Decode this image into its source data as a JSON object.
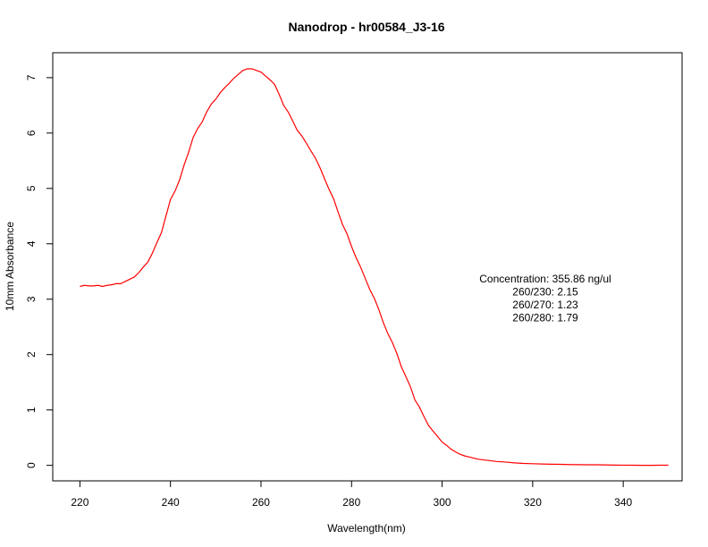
{
  "chart_data": {
    "type": "line",
    "title": "Nanodrop - hr00584_J3-16",
    "xlabel": "Wavelength(nm)",
    "ylabel": "10mm Absorbance",
    "xlim": [
      214,
      353
    ],
    "ylim": [
      -0.28,
      7.45
    ],
    "xticks": [
      220,
      240,
      260,
      280,
      300,
      320,
      340
    ],
    "yticks": [
      0,
      1,
      2,
      3,
      4,
      5,
      6,
      7
    ],
    "grid": false,
    "line_color": "#ff0000",
    "annotations": [
      "Concentration: 355.86 ng/ul",
      "260/230: 2.15",
      "260/270: 1.23",
      "260/280: 1.79"
    ],
    "series": [
      {
        "x": [
          220,
          221,
          222,
          223,
          224,
          225,
          226,
          227,
          228,
          229,
          230,
          231,
          232,
          233,
          234,
          235,
          236,
          237,
          238,
          239,
          240,
          241,
          242,
          243,
          244,
          245,
          246,
          247,
          248,
          249,
          250,
          251,
          252,
          253,
          254,
          255,
          256,
          257,
          258,
          259,
          260,
          261,
          262,
          263,
          264,
          265,
          266,
          267,
          268,
          269,
          270,
          271,
          272,
          273,
          274,
          275,
          276,
          277,
          278,
          279,
          280,
          281,
          282,
          283,
          284,
          285,
          286,
          287,
          288,
          289,
          290,
          291,
          292,
          293,
          294,
          295,
          296,
          297,
          298,
          299,
          300,
          301,
          302,
          303,
          304,
          305,
          306,
          307,
          308,
          309,
          310,
          312,
          314,
          316,
          318,
          320,
          322,
          324,
          326,
          328,
          330,
          332,
          334,
          336,
          338,
          340,
          342,
          344,
          346,
          348,
          350
        ],
        "y": [
          3.23,
          3.25,
          3.24,
          3.24,
          3.25,
          3.23,
          3.25,
          3.26,
          3.28,
          3.28,
          3.32,
          3.36,
          3.4,
          3.48,
          3.58,
          3.67,
          3.83,
          4.02,
          4.2,
          4.5,
          4.8,
          4.95,
          5.15,
          5.42,
          5.65,
          5.92,
          6.08,
          6.2,
          6.38,
          6.52,
          6.61,
          6.73,
          6.82,
          6.9,
          6.99,
          7.06,
          7.13,
          7.16,
          7.16,
          7.13,
          7.1,
          7.03,
          6.96,
          6.88,
          6.7,
          6.5,
          6.38,
          6.22,
          6.05,
          5.95,
          5.82,
          5.68,
          5.55,
          5.38,
          5.18,
          4.99,
          4.82,
          4.58,
          4.35,
          4.18,
          3.95,
          3.75,
          3.58,
          3.38,
          3.18,
          3.02,
          2.82,
          2.58,
          2.38,
          2.22,
          2.02,
          1.78,
          1.6,
          1.42,
          1.18,
          1.05,
          0.88,
          0.72,
          0.62,
          0.52,
          0.42,
          0.36,
          0.29,
          0.24,
          0.2,
          0.17,
          0.15,
          0.13,
          0.11,
          0.1,
          0.09,
          0.07,
          0.06,
          0.045,
          0.035,
          0.03,
          0.025,
          0.02,
          0.018,
          0.015,
          0.012,
          0.01,
          0.01,
          0.008,
          0.005,
          0.003,
          0.002,
          0.001,
          0.001,
          0.002,
          0.003
        ]
      }
    ]
  }
}
